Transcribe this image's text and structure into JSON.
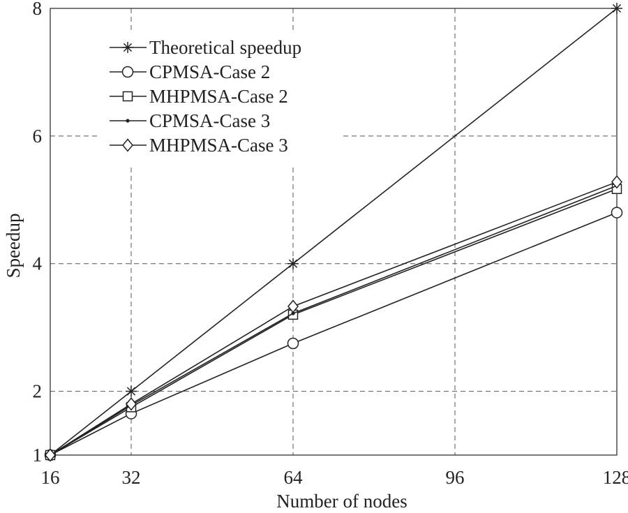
{
  "chart_data": {
    "type": "line",
    "title": "",
    "xlabel": "Number of nodes",
    "ylabel": "Speedup",
    "x": [
      16,
      32,
      64,
      128
    ],
    "xlim": [
      16,
      128
    ],
    "ylim": [
      1,
      8
    ],
    "xticks": [
      16,
      32,
      64,
      96,
      128
    ],
    "yticks": [
      1,
      2,
      4,
      6,
      8
    ],
    "xtick_labels": [
      "16",
      "32",
      "64",
      "96",
      "128"
    ],
    "ytick_labels": [
      "1",
      "2",
      "4",
      "6",
      "8"
    ],
    "grid": true,
    "legend_position": "top-left",
    "series": [
      {
        "name": "Theoretical speedup",
        "marker": "asterisk",
        "values": [
          1,
          2,
          4,
          8
        ]
      },
      {
        "name": "CPMSA-Case 2",
        "marker": "circle",
        "values": [
          1,
          1.65,
          2.75,
          4.8
        ]
      },
      {
        "name": "MHPMSA-Case 2",
        "marker": "square",
        "values": [
          1,
          1.75,
          3.2,
          5.17
        ]
      },
      {
        "name": "CPMSA-Case 3",
        "marker": "dot",
        "values": [
          1,
          1.78,
          3.22,
          5.22
        ]
      },
      {
        "name": "MHPMSA-Case 3",
        "marker": "diamond",
        "values": [
          1,
          1.8,
          3.33,
          5.28
        ]
      }
    ]
  }
}
